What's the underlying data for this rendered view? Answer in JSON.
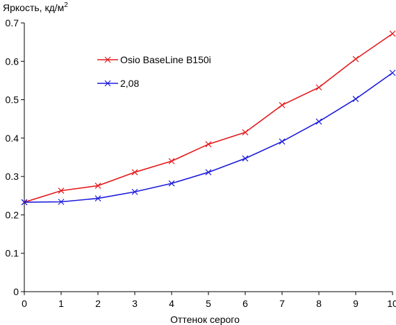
{
  "chart_data": {
    "type": "line",
    "title": "",
    "ylabel": "Яркость, кд/м",
    "ylabel_sup": "2",
    "xlabel": "Оттенок серого",
    "xlim": [
      0,
      10
    ],
    "ylim": [
      0,
      0.7
    ],
    "x_ticks": [
      "0",
      "1",
      "2",
      "3",
      "4",
      "5",
      "6",
      "7",
      "8",
      "9",
      "10"
    ],
    "y_ticks": [
      "0",
      "0.1",
      "0.2",
      "0.3",
      "0.4",
      "0.5",
      "0.6",
      "0.7"
    ],
    "grid": false,
    "legend_position": "top-left",
    "x": [
      0,
      1,
      2,
      3,
      4,
      5,
      6,
      7,
      8,
      9,
      10
    ],
    "series": [
      {
        "name": "Osio BaseLine B150i",
        "color": "#e41a1c",
        "marker": "x",
        "values": [
          0.233,
          0.263,
          0.276,
          0.311,
          0.34,
          0.384,
          0.415,
          0.486,
          0.532,
          0.606,
          0.672
        ]
      },
      {
        "name": "2,08",
        "color": "#1a1adc",
        "marker": "x",
        "values": [
          0.233,
          0.234,
          0.243,
          0.26,
          0.282,
          0.311,
          0.347,
          0.391,
          0.443,
          0.502,
          0.57
        ]
      }
    ]
  }
}
